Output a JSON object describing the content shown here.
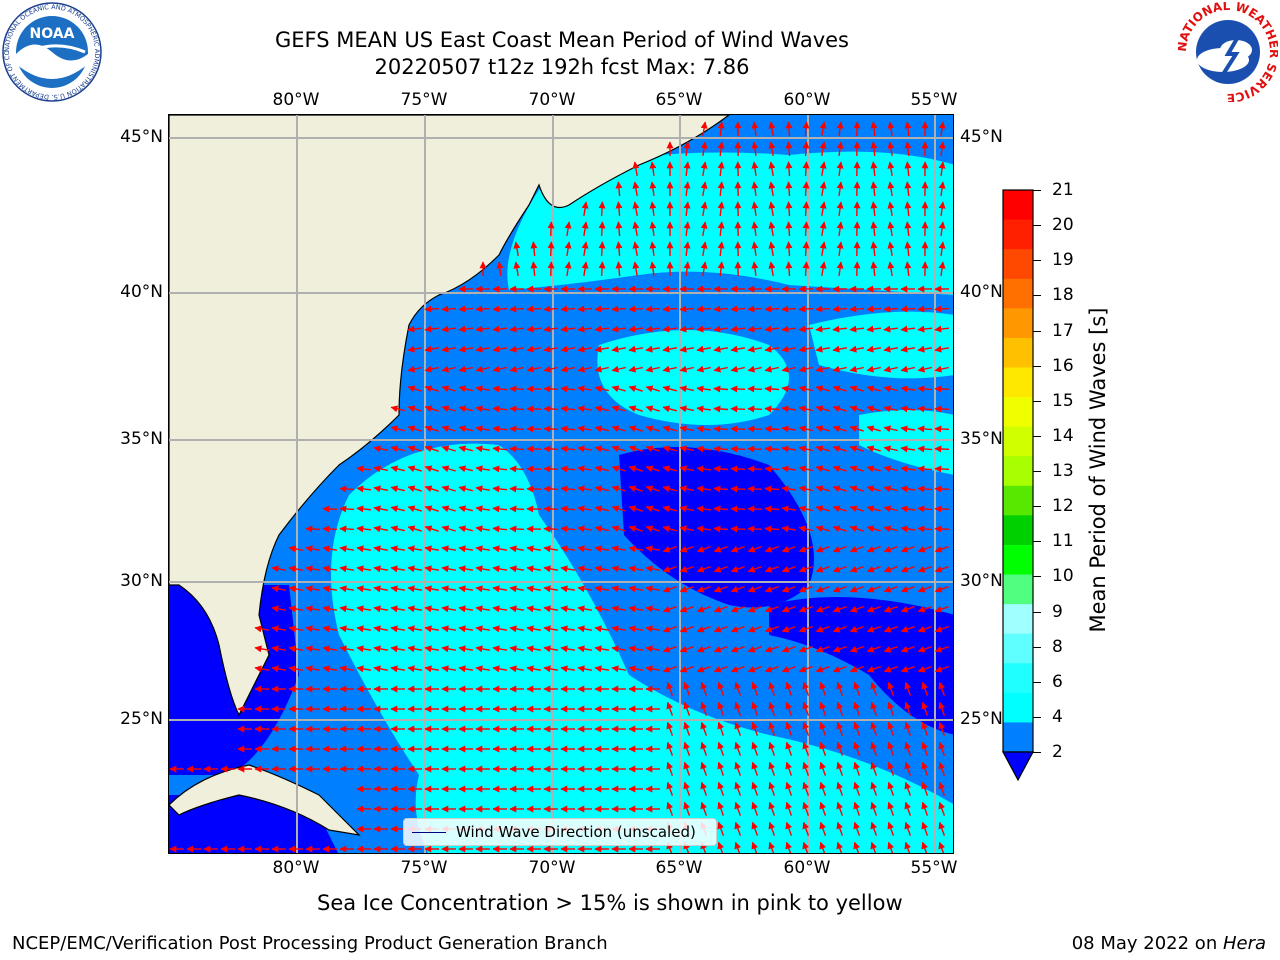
{
  "title": {
    "line1": "GEFS MEAN US East Coast Mean Period of Wind Waves",
    "line2": "20220507 t12z 192h fcst   Max: 7.86"
  },
  "logos": {
    "noaa_text": "NOAA",
    "noaa_ring": "NATIONAL OCEANIC AND ATMOSPHERIC ADMINISTRATION U.S. DEPARTMENT OF COMMERCE",
    "nws_ring": "NATIONAL WEATHER SERVICE"
  },
  "map": {
    "lon_labels": [
      "80°W",
      "75°W",
      "70°W",
      "65°W",
      "60°W",
      "55°W"
    ],
    "lat_labels": [
      "45°N",
      "40°N",
      "35°N",
      "30°N",
      "25°N"
    ],
    "legend_label": "Wind Wave Direction (unscaled)",
    "colors": {
      "land": "#efefdc",
      "water_low": "#0000ff",
      "water_mid": "#0080ff",
      "water_high": "#00ffff",
      "arrows": "#ff0000",
      "grid": "#b0b0b0"
    }
  },
  "colorbar": {
    "label": "Mean Period of Wind Waves [s]",
    "ticks": [
      "21",
      "20",
      "19",
      "18",
      "17",
      "16",
      "15",
      "14",
      "13",
      "12",
      "11",
      "10",
      "9",
      "8",
      "6",
      "4",
      "2"
    ],
    "colors_top_to_bottom": [
      "#ff0000",
      "#ff2000",
      "#ff4800",
      "#ff7000",
      "#ff9800",
      "#ffc000",
      "#ffe800",
      "#f0ff00",
      "#d0ff00",
      "#a8ff00",
      "#58e800",
      "#00d000",
      "#00ff00",
      "#50ff80",
      "#a0ffff",
      "#60ffff",
      "#20ffff",
      "#00ffff",
      "#0080ff"
    ],
    "extend_color": "#0000ff"
  },
  "note": "Sea Ice Concentration > 15% is shown in pink to yellow",
  "footer": {
    "left": "NCEP/EMC/Verification Post Processing Product Generation Branch",
    "right_date": "08 May 2022 on ",
    "right_machine": "Hera"
  }
}
